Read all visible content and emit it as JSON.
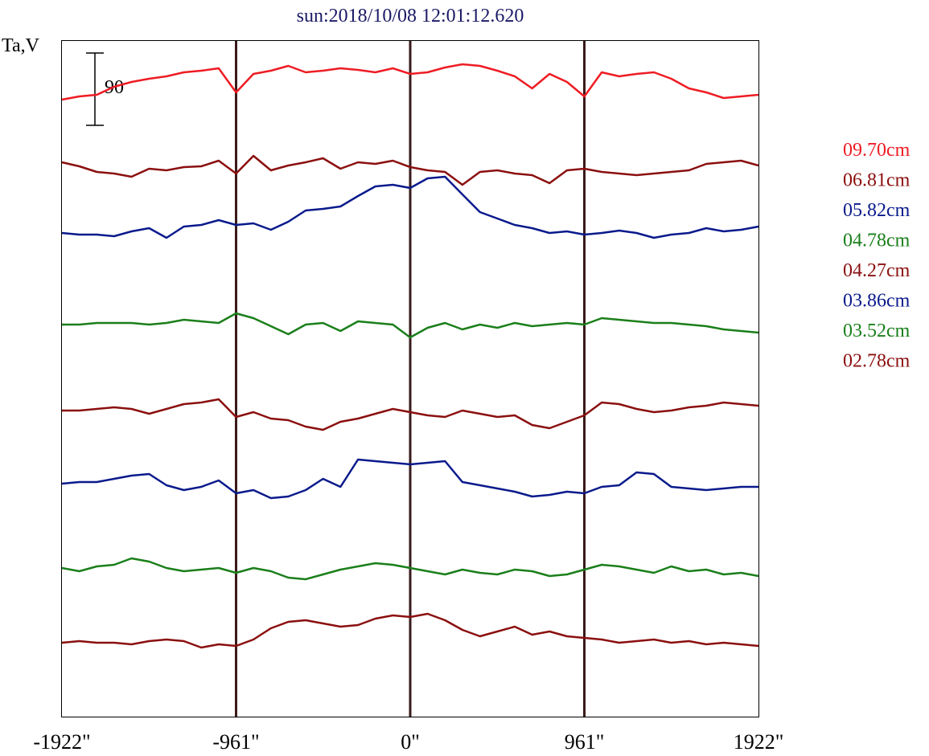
{
  "chart_data": {
    "type": "line",
    "title": "sun:2018/10/08 12:01:12.620",
    "title_color": "#1a1a66",
    "ylabel": "Ta,V",
    "xlabel": "",
    "xlim": [
      -1922,
      1922
    ],
    "x_ticks": [
      {
        "value": -1922,
        "label": "-1922\""
      },
      {
        "value": -961,
        "label": "-961\""
      },
      {
        "value": 0,
        "label": "0\""
      },
      {
        "value": 961,
        "label": "961\""
      },
      {
        "value": 1922,
        "label": "1922\""
      }
    ],
    "vertical_markers": [
      -961,
      0,
      961
    ],
    "marker_color": "#3a1a1a",
    "scale_bar": {
      "label": "90",
      "value": 90
    },
    "grid": false,
    "legend_position": "right",
    "x": [
      -1922,
      -1826,
      -1730,
      -1634,
      -1538,
      -1441,
      -1345,
      -1249,
      -1153,
      -1057,
      -961,
      -865,
      -769,
      -673,
      -577,
      -481,
      -385,
      -288,
      -192,
      -96,
      0,
      96,
      192,
      288,
      385,
      481,
      577,
      673,
      769,
      865,
      961,
      1057,
      1153,
      1249,
      1345,
      1441,
      1538,
      1634,
      1730,
      1826,
      1922
    ],
    "series": [
      {
        "name": "09.70cm",
        "color": "#ee1c24",
        "offset": 0,
        "values": [
          -4,
          0,
          2,
          12,
          18,
          22,
          25,
          30,
          32,
          35,
          5,
          28,
          32,
          38,
          30,
          32,
          35,
          33,
          30,
          35,
          28,
          30,
          36,
          40,
          38,
          32,
          25,
          10,
          28,
          18,
          0,
          30,
          25,
          28,
          30,
          22,
          10,
          5,
          -2,
          0,
          2
        ]
      },
      {
        "name": "06.81cm",
        "color": "#8b0f0f",
        "offset": 82,
        "values": [
          0,
          -5,
          -12,
          -14,
          -18,
          -8,
          -10,
          -6,
          -5,
          2,
          -14,
          8,
          -10,
          -4,
          0,
          5,
          -8,
          0,
          -2,
          2,
          -6,
          -10,
          -12,
          -28,
          -12,
          -10,
          -14,
          -16,
          -26,
          -10,
          -8,
          -12,
          -14,
          -16,
          -14,
          -12,
          -10,
          -2,
          0,
          2,
          -4
        ]
      },
      {
        "name": "05.82cm",
        "color": "#0a1a8c",
        "offset": 172,
        "values": [
          2,
          0,
          0,
          -2,
          4,
          8,
          -4,
          10,
          12,
          18,
          12,
          14,
          6,
          16,
          30,
          32,
          35,
          48,
          60,
          62,
          58,
          70,
          72,
          50,
          28,
          20,
          12,
          8,
          2,
          4,
          0,
          2,
          5,
          2,
          -4,
          0,
          2,
          8,
          4,
          6,
          10
        ]
      },
      {
        "name": "04.78cm",
        "color": "#1a7f1a",
        "offset": 284,
        "values": [
          0,
          0,
          2,
          2,
          2,
          0,
          2,
          6,
          4,
          2,
          14,
          8,
          -2,
          -12,
          0,
          2,
          -8,
          4,
          2,
          0,
          -16,
          -4,
          2,
          -6,
          0,
          -4,
          2,
          -2,
          0,
          2,
          0,
          8,
          6,
          4,
          2,
          2,
          0,
          -2,
          -6,
          -8,
          -10
        ]
      },
      {
        "name": "04.27cm",
        "color": "#8b0f0f",
        "offset": 391,
        "values": [
          0,
          0,
          2,
          4,
          2,
          -4,
          2,
          8,
          10,
          14,
          -8,
          -2,
          -10,
          -12,
          -20,
          -24,
          -14,
          -10,
          -4,
          2,
          -2,
          -6,
          -8,
          0,
          -4,
          -8,
          -6,
          -18,
          -22,
          -14,
          -6,
          10,
          8,
          2,
          -2,
          0,
          4,
          6,
          10,
          8,
          6
        ]
      },
      {
        "name": "03.86cm",
        "color": "#0a1a8c",
        "offset": 480,
        "values": [
          -2,
          0,
          0,
          4,
          8,
          10,
          -4,
          -10,
          -6,
          2,
          -14,
          -10,
          -20,
          -18,
          -10,
          4,
          -6,
          28,
          26,
          24,
          22,
          24,
          26,
          0,
          -4,
          -8,
          -12,
          -18,
          -16,
          -12,
          -14,
          -6,
          -4,
          12,
          10,
          -6,
          -8,
          -10,
          -8,
          -6,
          -6
        ]
      },
      {
        "name": "03.52cm",
        "color": "#1a7f1a",
        "offset": 587,
        "values": [
          0,
          -4,
          2,
          4,
          12,
          8,
          0,
          -4,
          -2,
          0,
          -6,
          0,
          -4,
          -12,
          -14,
          -8,
          -2,
          2,
          6,
          4,
          0,
          -4,
          -8,
          -2,
          -6,
          -8,
          -2,
          -4,
          -10,
          -8,
          -2,
          4,
          2,
          -2,
          -6,
          2,
          -4,
          -2,
          -8,
          -6,
          -10
        ]
      },
      {
        "name": "02.78cm",
        "color": "#8b0f0f",
        "offset": 680,
        "values": [
          0,
          2,
          0,
          0,
          -2,
          2,
          4,
          2,
          -6,
          -2,
          -4,
          4,
          18,
          26,
          28,
          24,
          20,
          22,
          30,
          34,
          32,
          36,
          28,
          16,
          8,
          14,
          20,
          10,
          14,
          8,
          6,
          4,
          0,
          2,
          4,
          0,
          2,
          -2,
          0,
          -2,
          -4
        ]
      }
    ]
  }
}
